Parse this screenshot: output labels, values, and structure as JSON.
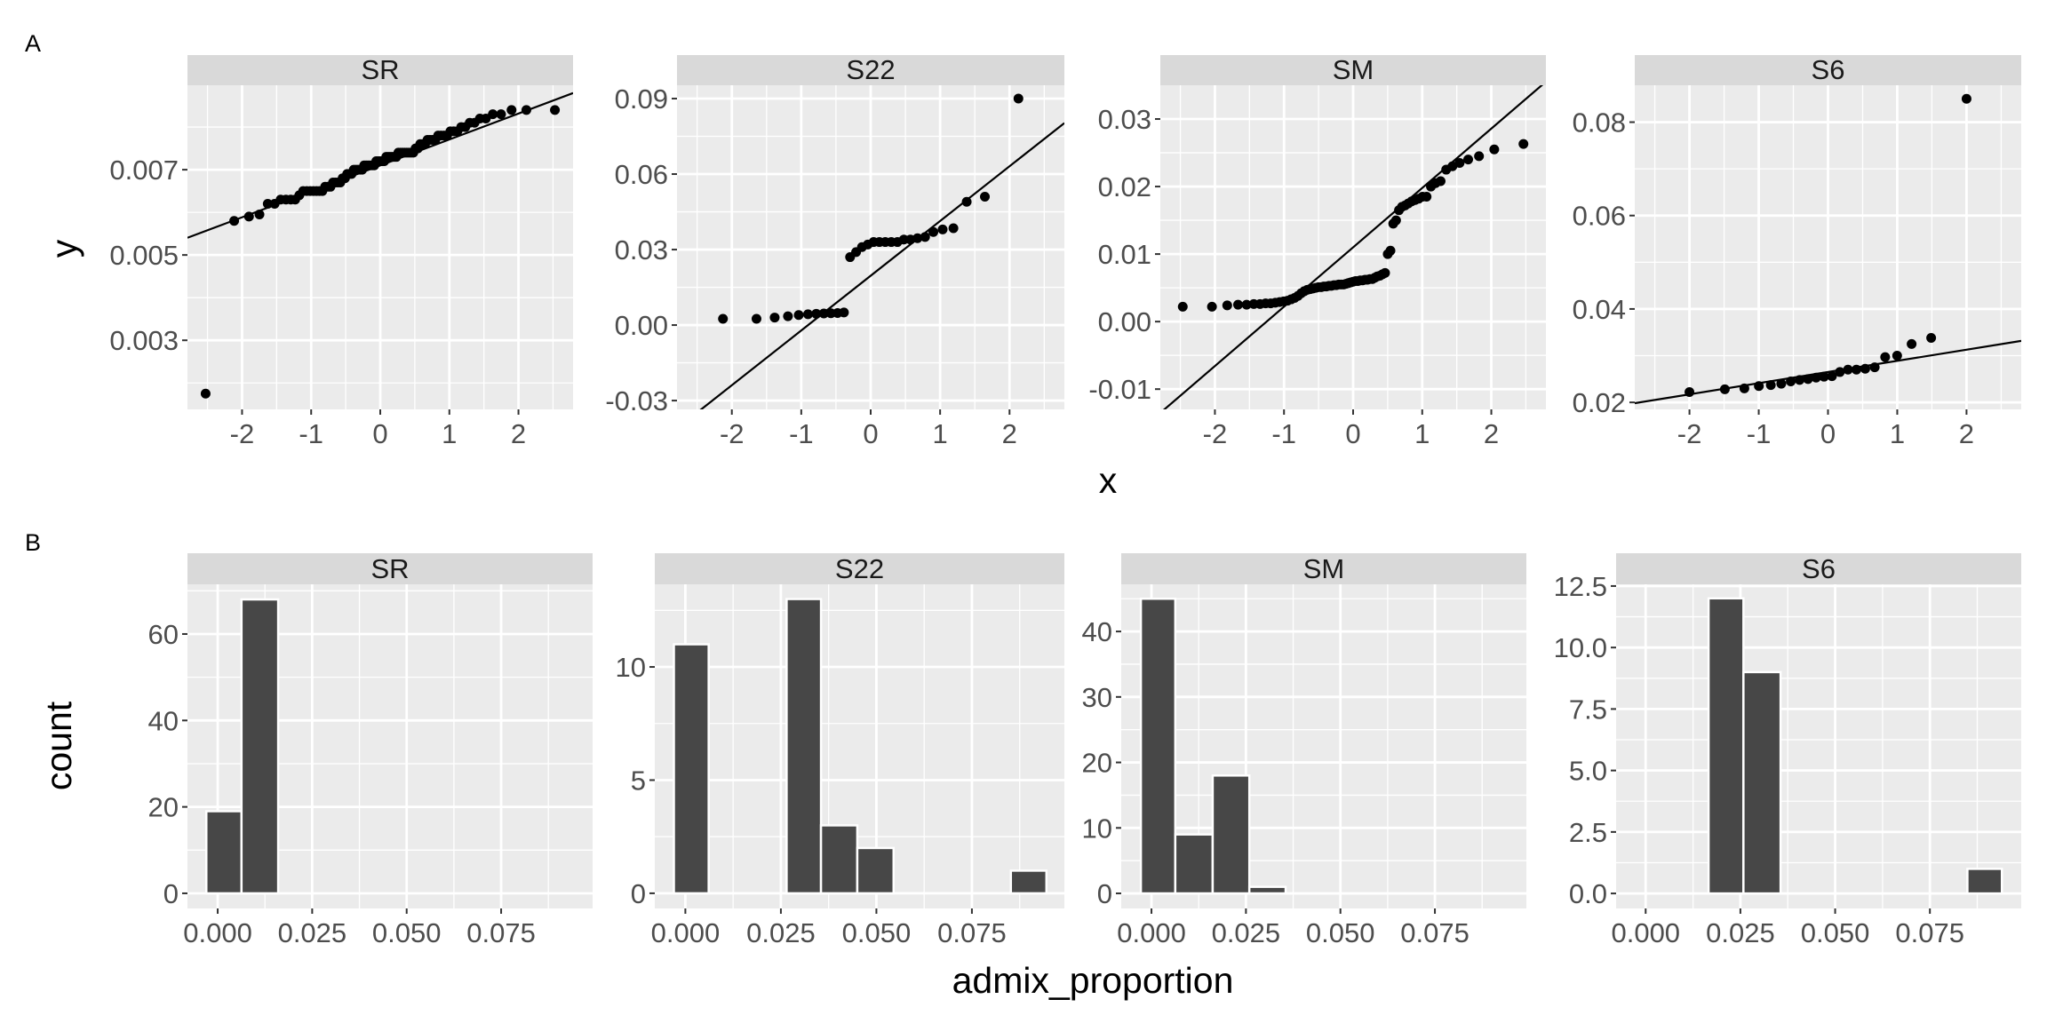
{
  "figure": {
    "tag_a": "A",
    "tag_b": "B",
    "qq_xlabel": "x",
    "qq_ylabel": "y",
    "hist_xlabel": "admix_proportion",
    "hist_ylabel": "count"
  },
  "colors": {
    "panel_bg": "#ebebeb",
    "strip_bg": "#d9d9d9",
    "grid": "#ffffff",
    "point": "#000000",
    "bar_fill": "#474747",
    "bar_outline": "#ffffff"
  },
  "chart_data": [
    {
      "type": "scatter",
      "subtype": "qq",
      "row": "A",
      "panel": "SR",
      "xlim": [
        -2.79,
        2.79
      ],
      "ylim": [
        0.00138,
        0.00898
      ],
      "xticks": [
        -2,
        -1,
        0,
        1,
        2
      ],
      "xtick_labels": [
        "-2",
        "-1",
        "0",
        "1",
        "2"
      ],
      "yticks": [
        0.003,
        0.005,
        0.007
      ],
      "ytick_labels": [
        "0.003",
        "0.005",
        "0.007"
      ],
      "qq_line": {
        "intercept": 0.0071,
        "slope": 0.000608
      },
      "sample": [
        0.00175,
        0.0058,
        0.0059,
        0.00595,
        0.0062,
        0.0062,
        0.0063,
        0.0063,
        0.0063,
        0.0063,
        0.0064,
        0.0065,
        0.0065,
        0.0065,
        0.0065,
        0.0065,
        0.0065,
        0.0065,
        0.0066,
        0.0066,
        0.0066,
        0.0067,
        0.0067,
        0.0067,
        0.0067,
        0.0068,
        0.0068,
        0.0069,
        0.0069,
        0.0069,
        0.007,
        0.007,
        0.007,
        0.007,
        0.007,
        0.0071,
        0.0071,
        0.0071,
        0.0071,
        0.0071,
        0.0071,
        0.0072,
        0.0072,
        0.0072,
        0.0072,
        0.0072,
        0.0073,
        0.0073,
        0.0073,
        0.0073,
        0.0073,
        0.0073,
        0.0074,
        0.0074,
        0.0074,
        0.0074,
        0.0074,
        0.0074,
        0.0074,
        0.0074,
        0.0075,
        0.0075,
        0.0076,
        0.0076,
        0.0076,
        0.0077,
        0.0077,
        0.0077,
        0.0077,
        0.0078,
        0.0078,
        0.0078,
        0.0078,
        0.0079,
        0.0079,
        0.0079,
        0.008,
        0.008,
        0.0081,
        0.0081,
        0.0082,
        0.0082,
        0.0083,
        0.0083,
        0.0084,
        0.0084,
        0.0084
      ]
    },
    {
      "type": "scatter",
      "subtype": "qq",
      "row": "A",
      "panel": "S22",
      "xlim": [
        -2.79,
        2.79
      ],
      "ylim": [
        -0.0335,
        0.0953
      ],
      "xticks": [
        -2,
        -1,
        0,
        1,
        2
      ],
      "xtick_labels": [
        "-2",
        "-1",
        "0",
        "1",
        "2"
      ],
      "yticks": [
        -0.03,
        0,
        0.03,
        0.06,
        0.09
      ],
      "ytick_labels": [
        "-0.03",
        "0.00",
        "0.03",
        "0.06",
        "0.09"
      ],
      "qq_line": {
        "intercept": 0.0196,
        "slope": 0.02175
      },
      "sample": [
        0.0025,
        0.0025,
        0.003,
        0.0035,
        0.004,
        0.0043,
        0.0045,
        0.0046,
        0.0047,
        0.0048,
        0.005,
        0.027,
        0.029,
        0.031,
        0.032,
        0.033,
        0.033,
        0.033,
        0.033,
        0.033,
        0.034,
        0.034,
        0.0345,
        0.035,
        0.037,
        0.038,
        0.0385,
        0.049,
        0.051,
        0.09
      ]
    },
    {
      "type": "scatter",
      "subtype": "qq",
      "row": "A",
      "panel": "SM",
      "xlim": [
        -2.79,
        2.79
      ],
      "ylim": [
        -0.013,
        0.035
      ],
      "xticks": [
        -2,
        -1,
        0,
        1,
        2
      ],
      "xtick_labels": [
        "-2",
        "-1",
        "0",
        "1",
        "2"
      ],
      "yticks": [
        -0.01,
        0,
        0.01,
        0.02,
        0.03
      ],
      "ytick_labels": [
        "-0.01",
        "0.00",
        "0.01",
        "0.02",
        "0.03"
      ],
      "qq_line": {
        "intercept": 0.011,
        "slope": 0.00879
      },
      "sample": [
        0.0022,
        0.0022,
        0.0024,
        0.0025,
        0.0025,
        0.0026,
        0.0026,
        0.0027,
        0.0027,
        0.0028,
        0.0029,
        0.003,
        0.0031,
        0.0033,
        0.0035,
        0.0038,
        0.0042,
        0.0045,
        0.0047,
        0.0048,
        0.0049,
        0.005,
        0.0051,
        0.0051,
        0.0052,
        0.0052,
        0.0053,
        0.0053,
        0.0054,
        0.0054,
        0.0055,
        0.0055,
        0.0055,
        0.0056,
        0.0057,
        0.0058,
        0.0059,
        0.006,
        0.006,
        0.0061,
        0.0061,
        0.0062,
        0.0062,
        0.0063,
        0.0063,
        0.0065,
        0.0067,
        0.0068,
        0.007,
        0.0072,
        0.01,
        0.0105,
        0.0145,
        0.015,
        0.0165,
        0.017,
        0.0172,
        0.0175,
        0.0178,
        0.018,
        0.0182,
        0.0185,
        0.0185,
        0.02,
        0.0205,
        0.0208,
        0.0225,
        0.023,
        0.0235,
        0.024,
        0.0245,
        0.0255,
        0.0263
      ]
    },
    {
      "type": "scatter",
      "subtype": "qq",
      "row": "A",
      "panel": "S6",
      "xlim": [
        -2.79,
        2.79
      ],
      "ylim": [
        0.0185,
        0.0879
      ],
      "xticks": [
        -2,
        -1,
        0,
        1,
        2
      ],
      "xtick_labels": [
        "-2",
        "-1",
        "0",
        "1",
        "2"
      ],
      "yticks": [
        0.02,
        0.04,
        0.06,
        0.08
      ],
      "ytick_labels": [
        "0.02",
        "0.04",
        "0.06",
        "0.08"
      ],
      "qq_line": {
        "intercept": 0.0265,
        "slope": 0.00239
      },
      "sample": [
        0.0222,
        0.0228,
        0.023,
        0.0235,
        0.0237,
        0.024,
        0.0245,
        0.0248,
        0.025,
        0.0253,
        0.0255,
        0.0256,
        0.0265,
        0.027,
        0.027,
        0.0272,
        0.0275,
        0.0297,
        0.03,
        0.0325,
        0.0338,
        0.085
      ]
    },
    {
      "type": "bar",
      "subtype": "histogram",
      "row": "B",
      "panel": "SR",
      "xlim": [
        -0.008,
        0.0992
      ],
      "ylim": [
        -3.5,
        71.5
      ],
      "xticks": [
        0,
        0.025,
        0.05,
        0.075
      ],
      "xtick_labels": [
        "0.000",
        "0.025",
        "0.050",
        "0.075"
      ],
      "yticks": [
        0,
        20,
        40,
        60
      ],
      "ytick_labels": [
        "0",
        "20",
        "40",
        "60"
      ],
      "bins": [
        {
          "xmin": -0.003,
          "xmax": 0.0063,
          "count": 19
        },
        {
          "xmin": 0.0063,
          "xmax": 0.016,
          "count": 68
        }
      ]
    },
    {
      "type": "bar",
      "subtype": "histogram",
      "row": "B",
      "panel": "S22",
      "xlim": [
        -0.008,
        0.0992
      ],
      "ylim": [
        -0.67,
        13.65
      ],
      "xticks": [
        0,
        0.025,
        0.05,
        0.075
      ],
      "xtick_labels": [
        "0.000",
        "0.025",
        "0.050",
        "0.075"
      ],
      "yticks": [
        0,
        5,
        10
      ],
      "ytick_labels": [
        "0",
        "5",
        "10"
      ],
      "bins": [
        {
          "xmin": -0.003,
          "xmax": 0.0061,
          "count": 11
        },
        {
          "xmin": 0.0265,
          "xmax": 0.0355,
          "count": 13
        },
        {
          "xmin": 0.0355,
          "xmax": 0.045,
          "count": 3
        },
        {
          "xmin": 0.045,
          "xmax": 0.0545,
          "count": 2
        },
        {
          "xmin": 0.0852,
          "xmax": 0.0945,
          "count": 1
        }
      ]
    },
    {
      "type": "bar",
      "subtype": "histogram",
      "row": "B",
      "panel": "SM",
      "xlim": [
        -0.008,
        0.0992
      ],
      "ylim": [
        -2.3,
        47.2
      ],
      "xticks": [
        0,
        0.025,
        0.05,
        0.075
      ],
      "xtick_labels": [
        "0.000",
        "0.025",
        "0.050",
        "0.075"
      ],
      "yticks": [
        0,
        10,
        20,
        30,
        40
      ],
      "ytick_labels": [
        "0",
        "10",
        "20",
        "30",
        "40"
      ],
      "bins": [
        {
          "xmin": -0.0028,
          "xmax": 0.0063,
          "count": 45
        },
        {
          "xmin": 0.0063,
          "xmax": 0.0162,
          "count": 9
        },
        {
          "xmin": 0.0162,
          "xmax": 0.0259,
          "count": 18
        },
        {
          "xmin": 0.0259,
          "xmax": 0.0355,
          "count": 1
        }
      ]
    },
    {
      "type": "bar",
      "subtype": "histogram",
      "row": "B",
      "panel": "S6",
      "xlim": [
        -0.0078,
        0.0991
      ],
      "ylim": [
        -0.61,
        12.57
      ],
      "xticks": [
        0,
        0.025,
        0.05,
        0.075
      ],
      "xtick_labels": [
        "0.000",
        "0.025",
        "0.050",
        "0.075"
      ],
      "yticks": [
        0,
        2.5,
        5,
        7.5,
        10,
        12.5
      ],
      "ytick_labels": [
        "0.0",
        "2.5",
        "5.0",
        "7.5",
        "10.0",
        "12.5"
      ],
      "bins": [
        {
          "xmin": 0.0166,
          "xmax": 0.0258,
          "count": 12
        },
        {
          "xmin": 0.0258,
          "xmax": 0.0356,
          "count": 9
        },
        {
          "xmin": 0.0849,
          "xmax": 0.094,
          "count": 1
        }
      ]
    }
  ]
}
